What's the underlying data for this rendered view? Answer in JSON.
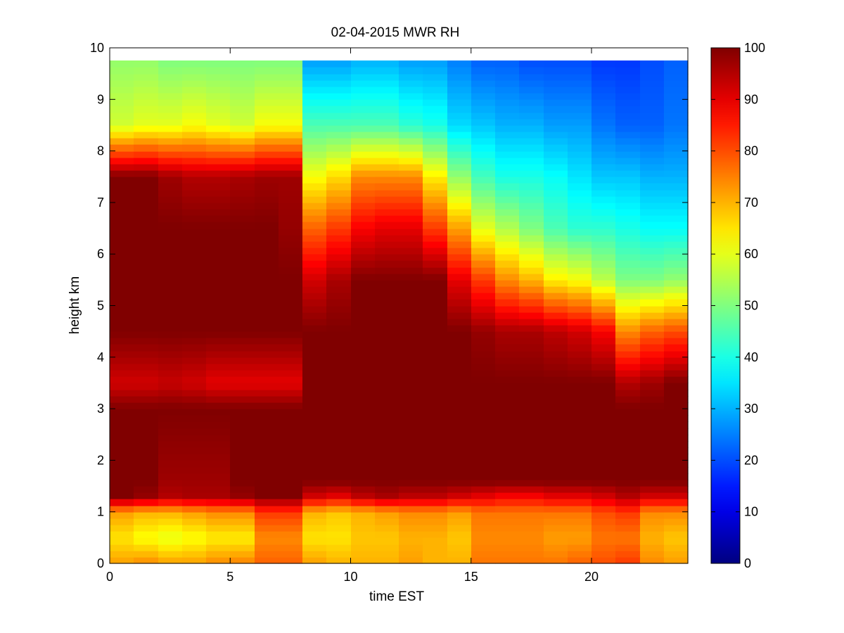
{
  "chart_data": {
    "type": "heatmap",
    "title": "02-04-2015 MWR RH",
    "xlabel": "time EST",
    "ylabel": "height km",
    "xlim": [
      0,
      24
    ],
    "ylim": [
      0,
      10
    ],
    "x_ticks": [
      0,
      5,
      10,
      15,
      20
    ],
    "y_ticks": [
      0,
      1,
      2,
      3,
      4,
      5,
      6,
      7,
      8,
      9,
      10
    ],
    "colorbar": {
      "colormap": "jet",
      "range": [
        0,
        100
      ],
      "ticks": [
        0,
        10,
        20,
        30,
        40,
        50,
        60,
        70,
        80,
        90,
        100
      ]
    },
    "x_centers": [
      0.5,
      1.5,
      2.5,
      3.5,
      4.5,
      5.5,
      6.5,
      7.5,
      8.5,
      9.5,
      10.5,
      11.5,
      12.5,
      13.5,
      14.5,
      15.5,
      16.5,
      17.5,
      18.5,
      19.5,
      20.5,
      21.5,
      22.5,
      23.5
    ],
    "profile_heights_km": [
      0,
      0.5,
      1.0,
      1.3,
      1.6,
      3.0,
      3.5,
      4.5,
      5.5,
      6.5,
      7.5,
      8.5,
      9.75
    ],
    "rh_profiles": [
      [
        72,
        65,
        72,
        100,
        100,
        100,
        92,
        100,
        100,
        100,
        100,
        58,
        52
      ],
      [
        74,
        62,
        70,
        98,
        100,
        100,
        92,
        100,
        100,
        100,
        100,
        60,
        52
      ],
      [
        72,
        60,
        70,
        95,
        97,
        100,
        93,
        100,
        100,
        100,
        97,
        60,
        50
      ],
      [
        72,
        62,
        72,
        96,
        97,
        100,
        92,
        100,
        100,
        100,
        95,
        62,
        50
      ],
      [
        74,
        64,
        74,
        96,
        97,
        100,
        90,
        100,
        100,
        100,
        95,
        60,
        50
      ],
      [
        75,
        64,
        74,
        98,
        100,
        100,
        90,
        100,
        100,
        100,
        96,
        58,
        50
      ],
      [
        78,
        74,
        82,
        100,
        100,
        100,
        90,
        100,
        100,
        100,
        97,
        62,
        50
      ],
      [
        78,
        74,
        82,
        100,
        100,
        100,
        90,
        100,
        100,
        98,
        97,
        62,
        50
      ],
      [
        72,
        65,
        70,
        92,
        100,
        100,
        100,
        100,
        92,
        78,
        62,
        45,
        28
      ],
      [
        70,
        65,
        68,
        90,
        100,
        100,
        100,
        100,
        96,
        82,
        66,
        45,
        28
      ],
      [
        70,
        68,
        70,
        94,
        100,
        100,
        100,
        100,
        100,
        88,
        74,
        45,
        30
      ],
      [
        70,
        68,
        72,
        96,
        100,
        100,
        100,
        100,
        100,
        90,
        74,
        45,
        30
      ],
      [
        72,
        70,
        74,
        94,
        100,
        100,
        100,
        100,
        100,
        90,
        74,
        42,
        28
      ],
      [
        70,
        70,
        74,
        94,
        100,
        100,
        100,
        100,
        100,
        82,
        64,
        40,
        28
      ],
      [
        70,
        68,
        72,
        92,
        100,
        100,
        100,
        100,
        90,
        72,
        52,
        34,
        25
      ],
      [
        76,
        74,
        76,
        90,
        100,
        100,
        100,
        98,
        82,
        60,
        44,
        32,
        22
      ],
      [
        76,
        74,
        76,
        88,
        100,
        100,
        100,
        96,
        74,
        55,
        40,
        30,
        22
      ],
      [
        76,
        74,
        76,
        88,
        100,
        100,
        100,
        96,
        70,
        50,
        40,
        30,
        20
      ],
      [
        76,
        72,
        76,
        90,
        100,
        100,
        100,
        94,
        64,
        45,
        38,
        28,
        20
      ],
      [
        78,
        72,
        76,
        90,
        100,
        100,
        100,
        92,
        62,
        42,
        35,
        28,
        20
      ],
      [
        80,
        76,
        80,
        92,
        100,
        100,
        100,
        88,
        56,
        42,
        32,
        24,
        18
      ],
      [
        82,
        76,
        82,
        95,
        100,
        100,
        95,
        74,
        50,
        40,
        32,
        22,
        18
      ],
      [
        74,
        70,
        74,
        92,
        100,
        100,
        97,
        78,
        50,
        38,
        30,
        22,
        20
      ],
      [
        72,
        68,
        74,
        92,
        100,
        100,
        100,
        80,
        52,
        38,
        30,
        24,
        22
      ]
    ]
  }
}
